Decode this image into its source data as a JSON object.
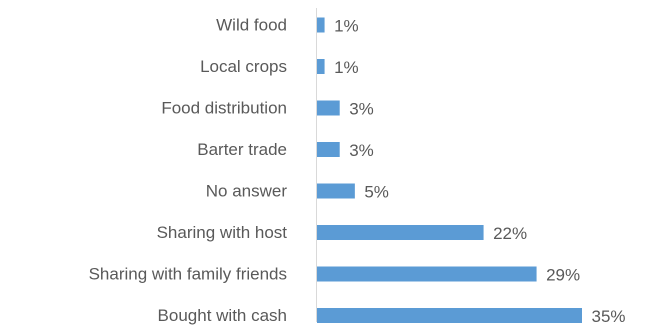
{
  "chart_data": {
    "type": "bar",
    "orientation": "horizontal",
    "categories": [
      "Wild food",
      "Local crops",
      "Food distribution",
      "Barter trade",
      "No answer",
      "Sharing with host ",
      "Sharing with family friends ",
      "Bought with cash"
    ],
    "values": [
      1,
      1,
      3,
      3,
      5,
      22,
      29,
      35
    ],
    "value_labels": [
      "1%",
      "1%",
      "3%",
      "3%",
      "5%",
      "22%",
      "29%",
      "35%"
    ],
    "unit": "%",
    "xlim": [
      0,
      35
    ],
    "grid": false,
    "legend": "none",
    "colors": {
      "bar": "#5b9bd5",
      "axis": "#d9d9d9",
      "text": "#595959"
    }
  }
}
